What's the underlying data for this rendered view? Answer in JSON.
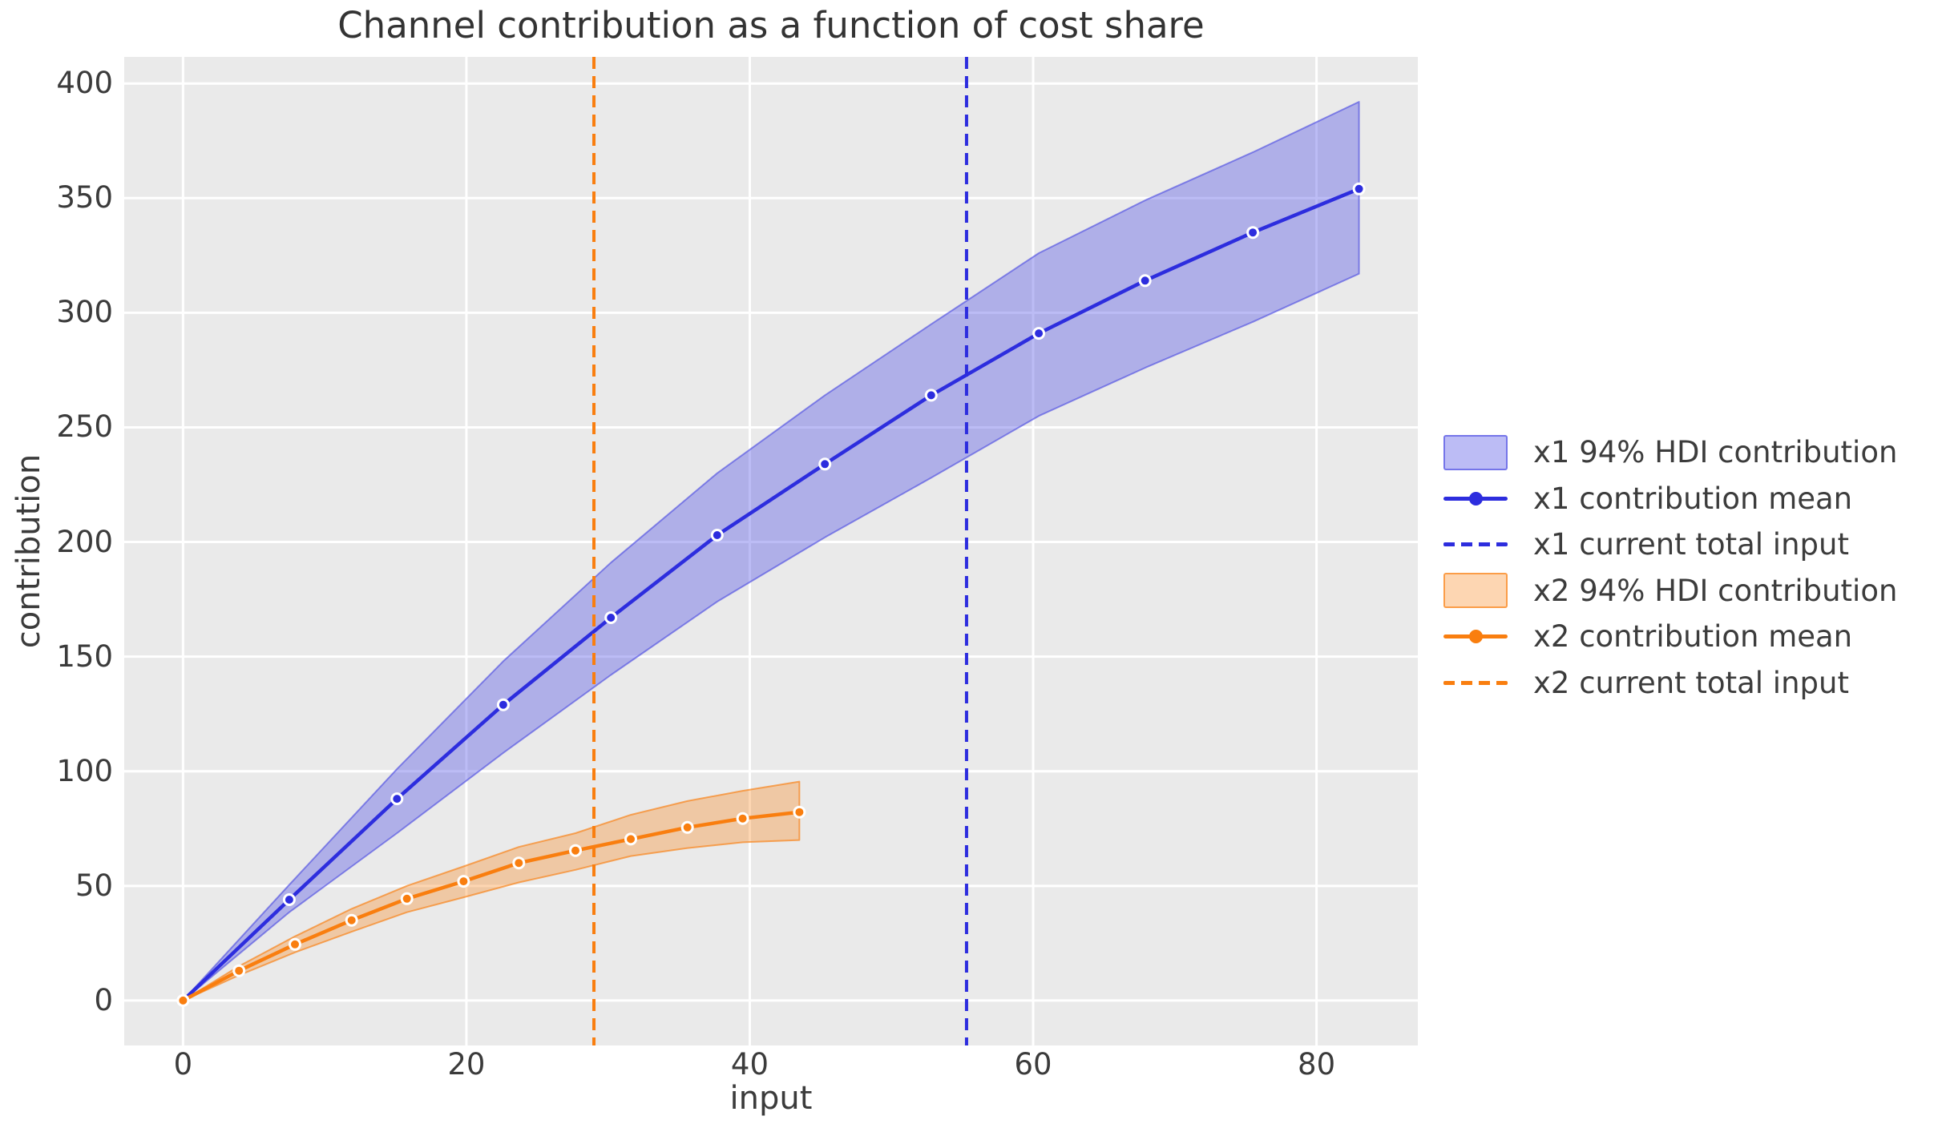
{
  "chart_data": {
    "type": "line",
    "title": "Channel contribution as a function of cost share",
    "xlabel": "input",
    "ylabel": "contribution",
    "xticks": [
      0,
      20,
      40,
      60,
      80
    ],
    "yticks": [
      0,
      50,
      100,
      150,
      200,
      250,
      300,
      350,
      400
    ],
    "xlim": [
      -4.15,
      87.15
    ],
    "ylim": [
      -19.6,
      411.6
    ],
    "background": "#EAEAEA",
    "gridcolor": "#FFFFFF",
    "legend_position": "outside-right",
    "series": [
      {
        "name": "x1",
        "color": "#2D2DDE",
        "band_fill": "rgba(80,80,230,0.38)",
        "band_edge": "rgba(70,70,225,0.6)",
        "labels": {
          "hdi": "x1 94% HDI contribution",
          "mean": "x1 contribution mean",
          "vline": "x1 current total input"
        },
        "current_total_input": 55.3,
        "x": [
          0,
          7.5,
          15.1,
          22.6,
          30.2,
          37.7,
          45.3,
          52.8,
          60.4,
          67.9,
          75.5,
          83
        ],
        "mean": [
          0,
          44,
          88,
          129,
          167,
          203,
          234,
          264,
          291,
          314,
          335,
          354
        ],
        "hdi_lower": [
          0,
          38.5,
          73,
          108,
          142,
          174,
          202,
          228,
          255,
          276,
          296,
          317
        ],
        "hdi_upper": [
          0,
          50.5,
          101,
          148,
          191,
          230,
          264,
          295,
          326,
          349,
          370,
          392
        ]
      },
      {
        "name": "x2",
        "color": "#F97E0F",
        "band_fill": "rgba(249,126,15,0.32)",
        "band_edge": "rgba(249,126,15,0.65)",
        "labels": {
          "hdi": "x2 94% HDI contribution",
          "mean": "x2 contribution mean",
          "vline": "x2 current total input"
        },
        "current_total_input": 29,
        "x": [
          0,
          3.95,
          7.9,
          11.9,
          15.8,
          19.8,
          23.7,
          27.7,
          31.6,
          35.6,
          39.5,
          43.5
        ],
        "mean": [
          0,
          13,
          24.5,
          35,
          44.4,
          52,
          60,
          65.4,
          70.4,
          75.5,
          79.4,
          82.2
        ],
        "hdi_lower": [
          0,
          11,
          21,
          30,
          38.5,
          45,
          51.5,
          57,
          63,
          66.5,
          69,
          70
        ],
        "hdi_upper": [
          0,
          15,
          28,
          40,
          50,
          58.5,
          67,
          73,
          81,
          87,
          91.5,
          95.5
        ]
      }
    ]
  }
}
